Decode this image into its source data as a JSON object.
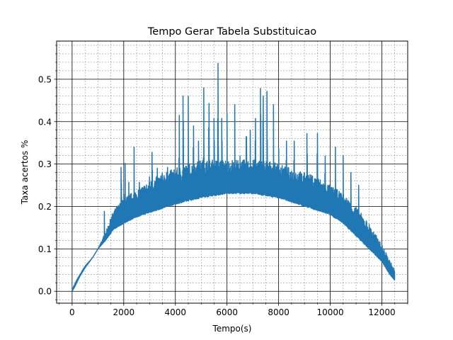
{
  "chart_data": {
    "type": "line",
    "title": "Tempo Gerar Tabela Substituicao",
    "xlabel": "Tempo(s)",
    "ylabel": "Taxa acertos %",
    "xlim": [
      -600,
      13000
    ],
    "ylim": [
      -0.028,
      0.59
    ],
    "x_ticks": [
      0,
      2000,
      4000,
      6000,
      8000,
      10000,
      12000
    ],
    "x_tick_labels": [
      "0",
      "2000",
      "4000",
      "6000",
      "8000",
      "10000",
      "12000"
    ],
    "y_ticks": [
      0.0,
      0.1,
      0.2,
      0.3,
      0.4,
      0.5
    ],
    "y_tick_labels": [
      "0.0",
      "0.1",
      "0.2",
      "0.3",
      "0.4",
      "0.5"
    ],
    "grid": {
      "major": true,
      "minor": true,
      "major_color": "#000000",
      "minor_color": "#808080"
    },
    "series": [
      {
        "color": "#1f77b4",
        "x_start": 0,
        "x_end": 12500,
        "baseline": {
          "x": [
            0,
            100,
            300,
            500,
            800,
            1000,
            1300,
            1600,
            2000,
            2500,
            3000,
            3500,
            4000,
            5000,
            6000,
            7000,
            8000,
            9000,
            10000,
            10500,
            11000,
            11500,
            12000,
            12300,
            12500
          ],
          "y": [
            0.0,
            0.01,
            0.035,
            0.055,
            0.08,
            0.1,
            0.12,
            0.145,
            0.16,
            0.175,
            0.185,
            0.195,
            0.205,
            0.22,
            0.23,
            0.23,
            0.22,
            0.2,
            0.18,
            0.16,
            0.13,
            0.1,
            0.07,
            0.04,
            0.025
          ]
        },
        "upper_envelope": {
          "x": [
            0,
            200,
            500,
            800,
            1000,
            1300,
            1600,
            2000,
            2500,
            3000,
            3500,
            4000,
            4500,
            5000,
            5500,
            6000,
            6500,
            7000,
            7500,
            8000,
            8500,
            9000,
            9500,
            10000,
            10500,
            11000,
            11500,
            12000,
            12500
          ],
          "y": [
            0.005,
            0.03,
            0.06,
            0.08,
            0.1,
            0.14,
            0.19,
            0.22,
            0.24,
            0.26,
            0.28,
            0.29,
            0.3,
            0.31,
            0.31,
            0.31,
            0.31,
            0.31,
            0.31,
            0.3,
            0.29,
            0.28,
            0.27,
            0.25,
            0.23,
            0.2,
            0.16,
            0.11,
            0.05
          ]
        },
        "spikes": [
          [
            1250,
            0.2
          ],
          [
            1500,
            0.17
          ],
          [
            1900,
            0.33
          ],
          [
            2050,
            0.32
          ],
          [
            2200,
            0.29
          ],
          [
            2400,
            0.34
          ],
          [
            2600,
            0.29
          ],
          [
            2800,
            0.28
          ],
          [
            3000,
            0.27
          ],
          [
            3100,
            0.37
          ],
          [
            3300,
            0.29
          ],
          [
            3500,
            0.3
          ],
          [
            3700,
            0.33
          ],
          [
            4150,
            0.44
          ],
          [
            4300,
            0.52
          ],
          [
            4500,
            0.46
          ],
          [
            4700,
            0.44
          ],
          [
            4900,
            0.4
          ],
          [
            5100,
            0.48
          ],
          [
            5300,
            0.5
          ],
          [
            5500,
            0.46
          ],
          [
            5650,
            0.57
          ],
          [
            5800,
            0.46
          ],
          [
            6000,
            0.42
          ],
          [
            6300,
            0.44
          ],
          [
            6500,
            0.36
          ],
          [
            6750,
            0.44
          ],
          [
            6900,
            0.38
          ],
          [
            7100,
            0.46
          ],
          [
            7300,
            0.54
          ],
          [
            7400,
            0.52
          ],
          [
            7550,
            0.5
          ],
          [
            7800,
            0.44
          ],
          [
            8000,
            0.38
          ],
          [
            8300,
            0.4
          ],
          [
            8600,
            0.4
          ],
          [
            9100,
            0.42
          ],
          [
            9500,
            0.42
          ],
          [
            9800,
            0.36
          ],
          [
            10200,
            0.34
          ],
          [
            10500,
            0.32
          ],
          [
            10800,
            0.28
          ],
          [
            11100,
            0.25
          ],
          [
            11300,
            0.18
          ],
          [
            11500,
            0.12
          ],
          [
            11800,
            0.1
          ],
          [
            12300,
            0.06
          ]
        ]
      }
    ]
  }
}
